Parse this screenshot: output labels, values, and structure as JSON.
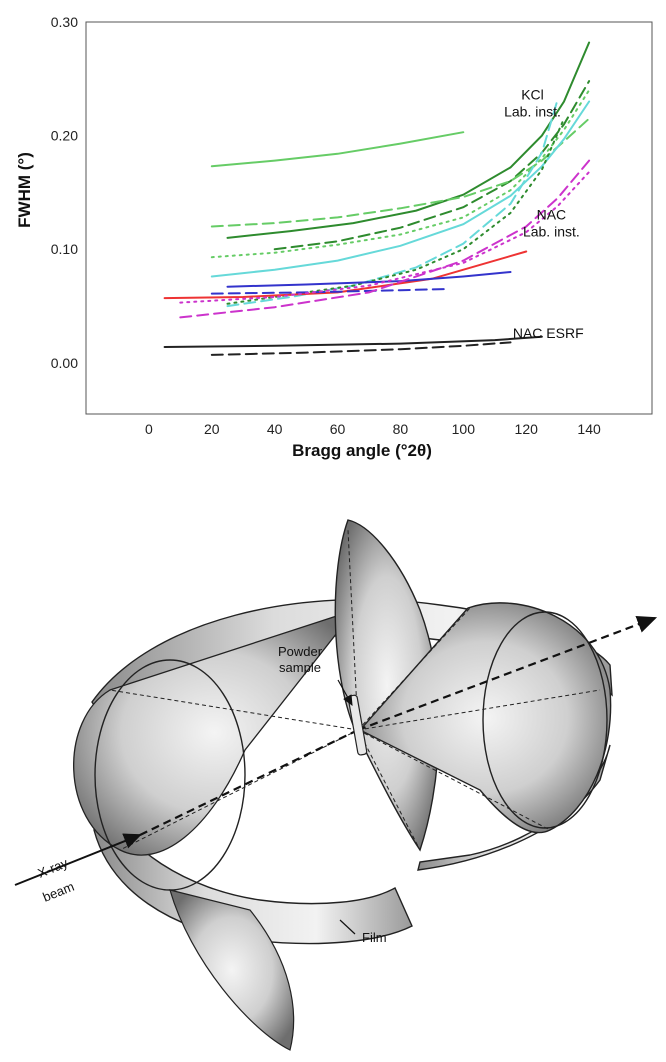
{
  "chart_data": {
    "type": "line",
    "xlabel": "Bragg angle (°2θ)",
    "ylabel": "FWHM (°)",
    "xlim": [
      -20,
      160
    ],
    "ylim": [
      -0.045,
      0.3
    ],
    "xticks": [
      "0",
      "20",
      "40",
      "60",
      "80",
      "100",
      "120",
      "140"
    ],
    "xtick_values": [
      0,
      20,
      40,
      60,
      80,
      100,
      120,
      140
    ],
    "yticks": [
      "0.00",
      "0.10",
      "0.20",
      "0.30"
    ],
    "ytick_values": [
      0.0,
      0.1,
      0.2,
      0.3
    ],
    "grid": false,
    "annotations": [
      {
        "lines": [
          "KCl",
          "Lab. inst."
        ],
        "x": 122,
        "y": 0.232
      },
      {
        "lines": [
          "NAC",
          "Lab. inst."
        ],
        "x": 128,
        "y": 0.126
      },
      {
        "lines": [
          "NAC ESRF"
        ],
        "x": 127,
        "y": 0.022
      }
    ],
    "series": [
      {
        "color": "#66cc66",
        "dash": "solid",
        "x": [
          20,
          40,
          60,
          80,
          100
        ],
        "y": [
          0.173,
          0.178,
          0.184,
          0.193,
          0.203
        ]
      },
      {
        "color": "#2e8b2e",
        "dash": "solid",
        "x": [
          25,
          45,
          65,
          85,
          100,
          115,
          125,
          132,
          140
        ],
        "y": [
          0.11,
          0.116,
          0.123,
          0.134,
          0.148,
          0.172,
          0.2,
          0.23,
          0.282
        ]
      },
      {
        "color": "#2e8b2e",
        "dash": "dash",
        "x": [
          40,
          60,
          80,
          100,
          115,
          125,
          132,
          140
        ],
        "y": [
          0.1,
          0.107,
          0.119,
          0.137,
          0.16,
          0.185,
          0.21,
          0.248
        ]
      },
      {
        "color": "#66cc66",
        "dash": "dash",
        "x": [
          20,
          40,
          60,
          80,
          100,
          115,
          125,
          132,
          140
        ],
        "y": [
          0.12,
          0.123,
          0.128,
          0.136,
          0.146,
          0.16,
          0.178,
          0.195,
          0.215
        ]
      },
      {
        "color": "#66cc66",
        "dash": "dot",
        "x": [
          20,
          40,
          60,
          80,
          100,
          115,
          125,
          132,
          140
        ],
        "y": [
          0.093,
          0.097,
          0.104,
          0.113,
          0.128,
          0.152,
          0.18,
          0.205,
          0.24
        ]
      },
      {
        "color": "#66d9d9",
        "dash": "solid",
        "x": [
          20,
          40,
          60,
          80,
          100,
          115,
          125,
          132,
          140
        ],
        "y": [
          0.076,
          0.082,
          0.09,
          0.103,
          0.122,
          0.147,
          0.173,
          0.197,
          0.23
        ]
      },
      {
        "color": "#66d9d9",
        "dash": "dash",
        "x": [
          25,
          45,
          65,
          85,
          100,
          115,
          125,
          130
        ],
        "y": [
          0.05,
          0.058,
          0.068,
          0.084,
          0.105,
          0.14,
          0.185,
          0.232
        ]
      },
      {
        "color": "#2e8b2e",
        "dash": "dot",
        "x": [
          25,
          45,
          65,
          85,
          100,
          115,
          125,
          132
        ],
        "y": [
          0.052,
          0.06,
          0.068,
          0.082,
          0.1,
          0.132,
          0.17,
          0.215
        ]
      },
      {
        "color": "#ee3333",
        "dash": "solid",
        "x": [
          5,
          30,
          60,
          90,
          120
        ],
        "y": [
          0.057,
          0.058,
          0.062,
          0.074,
          0.098
        ]
      },
      {
        "color": "#3333cc",
        "dash": "solid",
        "x": [
          25,
          50,
          80,
          100,
          115
        ],
        "y": [
          0.067,
          0.069,
          0.072,
          0.076,
          0.08
        ]
      },
      {
        "color": "#3333cc",
        "dash": "dash",
        "x": [
          20,
          50,
          80,
          95
        ],
        "y": [
          0.061,
          0.062,
          0.064,
          0.065
        ]
      },
      {
        "color": "#cc33cc",
        "dash": "dash",
        "x": [
          10,
          40,
          70,
          100,
          120,
          130,
          140
        ],
        "y": [
          0.04,
          0.049,
          0.062,
          0.09,
          0.12,
          0.145,
          0.178
        ]
      },
      {
        "color": "#cc33cc",
        "dash": "dot",
        "x": [
          10,
          40,
          70,
          100,
          120,
          130,
          140
        ],
        "y": [
          0.053,
          0.058,
          0.068,
          0.088,
          0.115,
          0.138,
          0.168
        ]
      },
      {
        "color": "#222222",
        "dash": "solid",
        "x": [
          5,
          40,
          80,
          110,
          125
        ],
        "y": [
          0.014,
          0.015,
          0.017,
          0.02,
          0.023
        ]
      },
      {
        "color": "#222222",
        "dash": "dash",
        "x": [
          20,
          50,
          80,
          100,
          115
        ],
        "y": [
          0.007,
          0.009,
          0.012,
          0.015,
          0.018
        ]
      }
    ]
  },
  "diagram": {
    "labels": {
      "powder_sample": [
        "Powder",
        "sample"
      ],
      "xray_beam": [
        "X-ray",
        "beam"
      ],
      "film": "Film"
    }
  }
}
